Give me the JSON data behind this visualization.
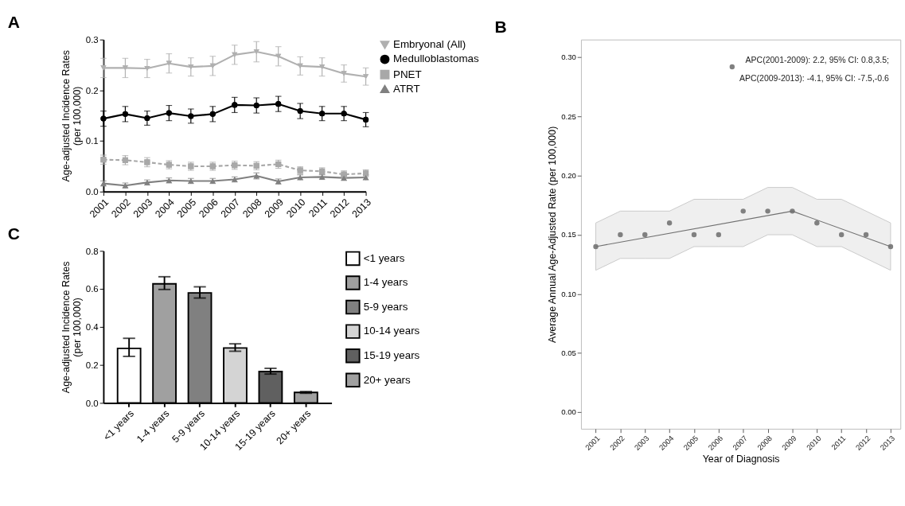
{
  "chart_data": [
    {
      "type": "line",
      "title": "A",
      "ylabel": "Age-adjusted Incidence Rates\n(per 100,000)",
      "categories": [
        "2001",
        "2002",
        "2003",
        "2004",
        "2005",
        "2006",
        "2007",
        "2008",
        "2009",
        "2010",
        "2011",
        "2012",
        "2013"
      ],
      "ylim": [
        0,
        0.3
      ],
      "yticks": [
        {
          "value": 0,
          "label": "0.0"
        },
        0.1,
        0.2,
        0.3
      ],
      "grid": false,
      "legend": "top right",
      "series": [
        {
          "name": "Embryonal (All)",
          "color": "#b0b0b0",
          "marker": "triangle-down",
          "line_style": "solid",
          "values": [
            0.244,
            0.244,
            0.243,
            0.253,
            0.246,
            0.248,
            0.27,
            0.276,
            0.267,
            0.248,
            0.246,
            0.233,
            0.227
          ],
          "errors": [
            0.019,
            0.019,
            0.018,
            0.019,
            0.018,
            0.019,
            0.019,
            0.02,
            0.019,
            0.018,
            0.018,
            0.017,
            0.017
          ]
        },
        {
          "name": "Medulloblastomas",
          "color": "#000000",
          "marker": "circle",
          "line_style": "solid",
          "values": [
            0.144,
            0.153,
            0.145,
            0.155,
            0.149,
            0.153,
            0.171,
            0.17,
            0.173,
            0.159,
            0.154,
            0.154,
            0.142
          ],
          "errors": [
            0.015,
            0.015,
            0.014,
            0.015,
            0.014,
            0.015,
            0.015,
            0.015,
            0.015,
            0.015,
            0.014,
            0.014,
            0.014
          ]
        },
        {
          "name": "PNET",
          "color": "#a8a8a8",
          "marker": "square",
          "line_style": "dashed",
          "values": [
            0.063,
            0.062,
            0.058,
            0.053,
            0.05,
            0.05,
            0.052,
            0.051,
            0.054,
            0.042,
            0.04,
            0.034,
            0.036
          ],
          "errors": [
            0.009,
            0.009,
            0.009,
            0.008,
            0.008,
            0.008,
            0.008,
            0.008,
            0.008,
            0.007,
            0.007,
            0.007,
            0.007
          ]
        },
        {
          "name": "ATRT",
          "color": "#808080",
          "marker": "triangle-up",
          "line_style": "solid",
          "values": [
            0.016,
            0.012,
            0.018,
            0.022,
            0.021,
            0.021,
            0.024,
            0.031,
            0.02,
            0.028,
            0.029,
            0.027,
            0.028
          ],
          "errors": [
            0.005,
            0.005,
            0.005,
            0.005,
            0.005,
            0.005,
            0.005,
            0.006,
            0.005,
            0.005,
            0.005,
            0.005,
            0.005
          ]
        }
      ]
    },
    {
      "type": "scatter",
      "title": "B",
      "xlabel": "Year of Diagnosis",
      "ylabel": "Average Annual Age-Adjusted Rate (per 100,000)",
      "xlim": [
        2000.4,
        2013.4
      ],
      "xticks": [
        2001,
        2002,
        2003,
        2004,
        2005,
        2006,
        2007,
        2008,
        2009,
        2010,
        2011,
        2012,
        2013
      ],
      "ylim": [
        -0.014,
        0.315
      ],
      "yticks": [
        {
          "value": 0,
          "label": "0.00"
        },
        0.05,
        {
          "value": 0.1,
          "label": "0.10"
        },
        0.15,
        {
          "value": 0.2,
          "label": "0.20"
        },
        0.25,
        {
          "value": 0.3,
          "label": "0.30"
        }
      ],
      "grid": false,
      "annotations": [
        "APC(2001-2009): 2.2, 95% CI: 0.8,3.5;",
        "APC(2009-2013): -4.1, 95% CI: -7.5,-0.6"
      ],
      "series": [
        {
          "type": "scatter",
          "marker": "circle",
          "color": "#808080",
          "x": [
            2001,
            2002,
            2003,
            2004,
            2005,
            2006,
            2007,
            2008,
            2009,
            2010,
            2011,
            2012,
            2013
          ],
          "values": [
            0.14,
            0.15,
            0.15,
            0.16,
            0.15,
            0.15,
            0.17,
            0.17,
            0.17,
            0.16,
            0.15,
            0.15,
            0.14
          ],
          "lower": [
            0.12,
            0.13,
            0.13,
            0.13,
            0.14,
            0.14,
            0.14,
            0.15,
            0.15,
            0.14,
            0.14,
            0.13,
            0.12
          ],
          "upper": [
            0.16,
            0.17,
            0.17,
            0.17,
            0.18,
            0.18,
            0.18,
            0.19,
            0.19,
            0.18,
            0.18,
            0.17,
            0.16
          ]
        },
        {
          "type": "line",
          "marker": "none",
          "color": "#707070",
          "x": [
            2001,
            2009,
            2013
          ],
          "values": [
            0.14,
            0.17,
            0.14
          ]
        },
        {
          "type": "scatter",
          "marker": "circle",
          "color": "#808080",
          "x": [
            2006.55
          ],
          "values": [
            0.292
          ]
        }
      ]
    },
    {
      "type": "bar",
      "title": "C",
      "ylabel": "Age-adjusted Incidence Rates\n(per 100,000)",
      "categories": [
        "<1 years",
        "1-4 years",
        "5-9 years",
        "10-14 years",
        "15-19 years",
        "20+ years"
      ],
      "ylim": [
        0,
        0.8
      ],
      "yticks": [
        {
          "value": 0,
          "label": "0.0"
        },
        0.2,
        0.4,
        0.6,
        0.8
      ],
      "grid": false,
      "legend": "right",
      "stacked": true,
      "series": [
        {
          "name": "<1 years",
          "color": "#ffffff",
          "values": [
            0.287,
            null,
            null,
            null,
            null,
            null
          ],
          "errors": [
            [
              0.245,
              0.34
            ],
            null,
            null,
            null,
            null,
            null
          ]
        },
        {
          "name": "1-4 years",
          "color": "#a0a0a0",
          "values": [
            null,
            0.627,
            null,
            null,
            null,
            null
          ],
          "errors": [
            null,
            [
              0.597,
              0.664
            ],
            null,
            null,
            null,
            null
          ]
        },
        {
          "name": "5-9 years",
          "color": "#808080",
          "values": [
            null,
            null,
            0.579,
            null,
            null,
            null
          ],
          "errors": [
            null,
            null,
            [
              0.552,
              0.611
            ],
            null,
            null,
            null
          ]
        },
        {
          "name": "10-14 years",
          "color": "#d4d4d4",
          "values": [
            null,
            null,
            null,
            0.289,
            null,
            null
          ],
          "errors": [
            null,
            null,
            null,
            [
              0.272,
              0.311
            ],
            null,
            null
          ]
        },
        {
          "name": "15-19 years",
          "color": "#606060",
          "values": [
            null,
            null,
            null,
            null,
            0.165,
            null
          ],
          "errors": [
            null,
            null,
            null,
            null,
            [
              0.152,
              0.182
            ],
            null
          ]
        },
        {
          "name": "20+ years",
          "color": "#a0a0a0",
          "values": [
            null,
            null,
            null,
            null,
            null,
            0.055
          ],
          "errors": [
            null,
            null,
            null,
            null,
            null,
            [
              0.051,
              0.06
            ]
          ]
        }
      ]
    }
  ]
}
